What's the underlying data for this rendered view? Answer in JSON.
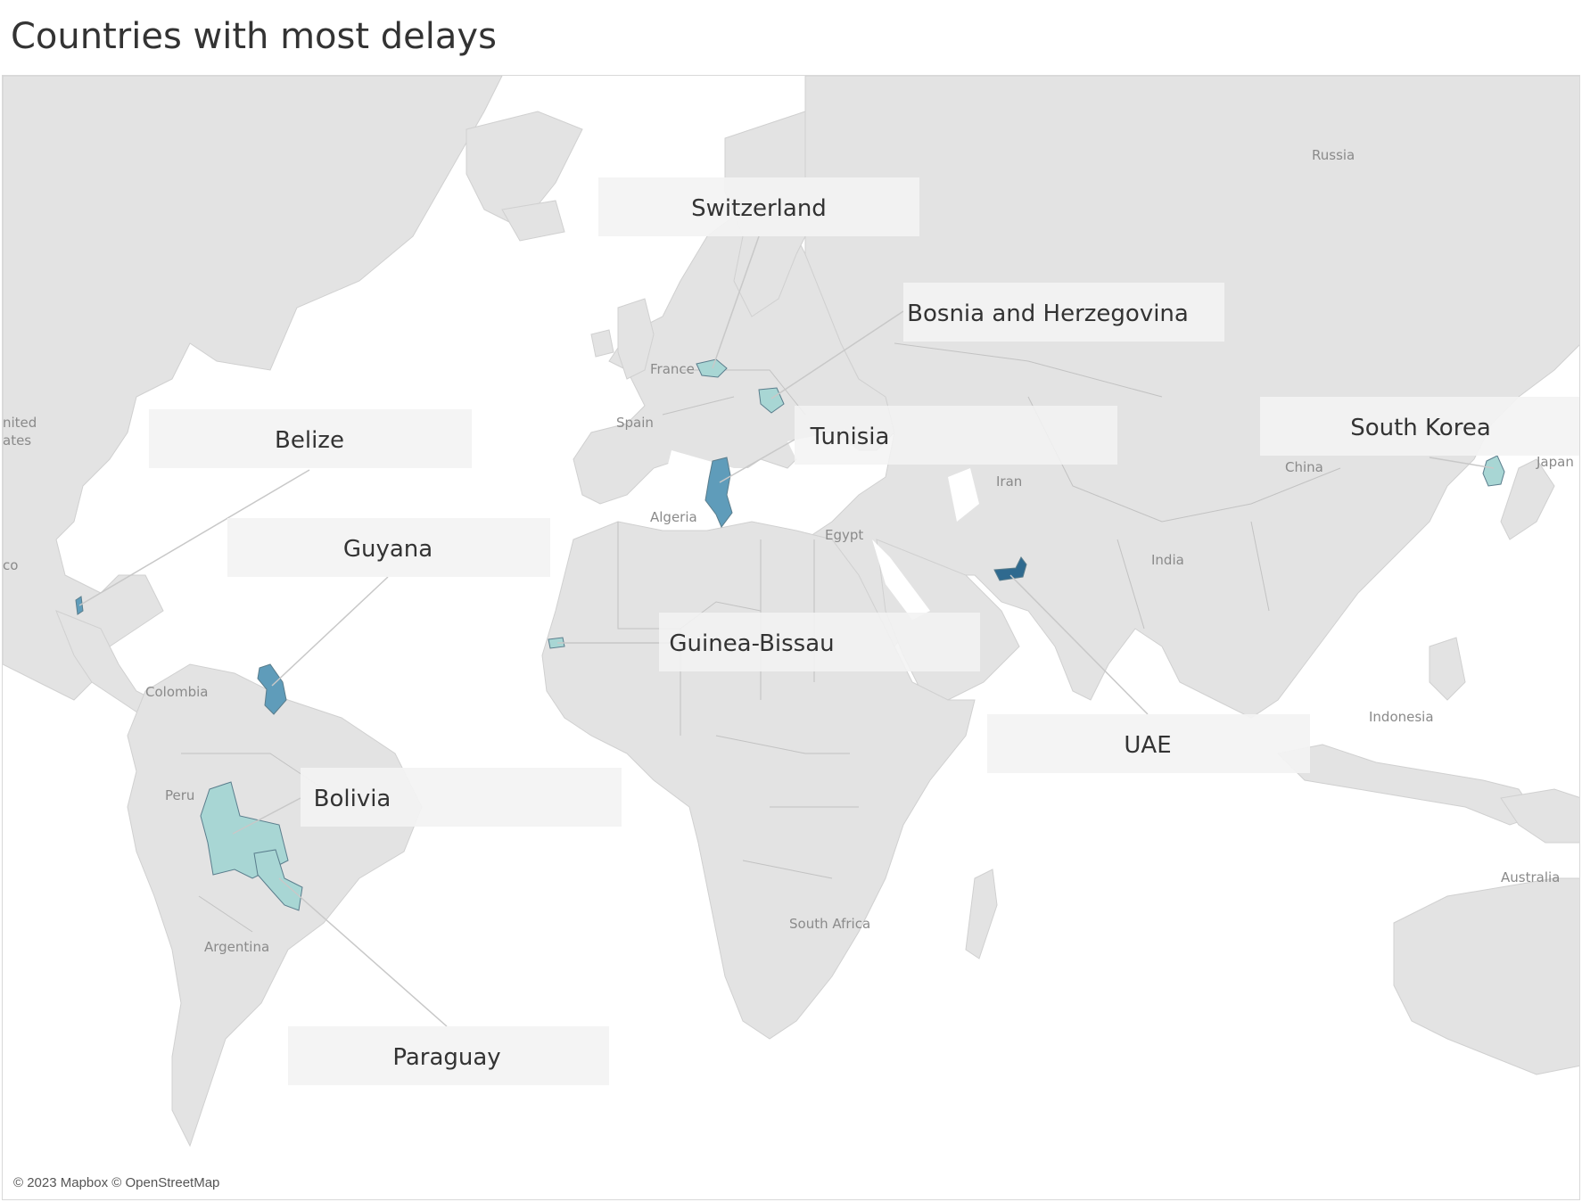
{
  "title": "Countries with most delays",
  "attribution": "© 2023 Mapbox © OpenStreetMap",
  "base_labels": [
    "Russia",
    "France",
    "Spain",
    "Algeria",
    "Egypt",
    "Iran",
    "China",
    "Japan",
    "India",
    "Indonesia",
    "Australia",
    "South Africa",
    "Colombia",
    "Peru",
    "Argentina",
    "nited",
    "ates",
    "co"
  ],
  "colors": {
    "land": "#e2e2e2",
    "land_dark": "#d9d9d9",
    "ocean": "#ffffff",
    "border": "#bdbdbd",
    "light_teal": "#a8d6d4",
    "mid_teal": "#5f9cba",
    "dark_teal": "#2f6a8f",
    "callout_bg": "#f3f3f3",
    "leader_line": "#c6c6c6"
  },
  "highlighted_countries": [
    {
      "name": "Switzerland",
      "color": "light_teal"
    },
    {
      "name": "Bosnia and Herzegovina",
      "color": "light_teal"
    },
    {
      "name": "Tunisia",
      "color": "mid_teal"
    },
    {
      "name": "South Korea",
      "color": "light_teal"
    },
    {
      "name": "Belize",
      "color": "mid_teal"
    },
    {
      "name": "Guyana",
      "color": "mid_teal"
    },
    {
      "name": "Guinea-Bissau",
      "color": "light_teal"
    },
    {
      "name": "UAE",
      "color": "dark_teal"
    },
    {
      "name": "Bolivia",
      "color": "light_teal"
    },
    {
      "name": "Paraguay",
      "color": "light_teal"
    }
  ]
}
